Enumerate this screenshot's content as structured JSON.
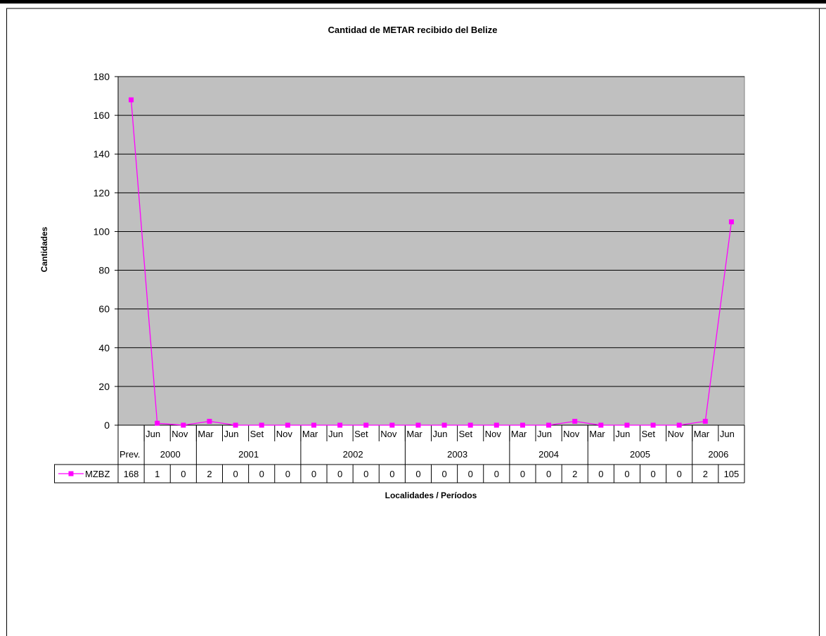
{
  "chart_data": {
    "type": "line",
    "title": "Cantidad de METAR recibido del Belize",
    "xlabel": "Localidades / Períodos",
    "ylabel": "Cantidades",
    "ylim": [
      0,
      180
    ],
    "yticks": [
      0,
      20,
      40,
      60,
      80,
      100,
      120,
      140,
      160,
      180
    ],
    "grid": true,
    "categories": [
      "Prev.",
      "Jun",
      "Nov",
      "Mar",
      "Jun",
      "Set",
      "Nov",
      "Mar",
      "Jun",
      "Set",
      "Nov",
      "Mar",
      "Jun",
      "Set",
      "Nov",
      "Mar",
      "Jun",
      "Nov",
      "Mar",
      "Jun",
      "Set",
      "Nov",
      "Mar",
      "Jun"
    ],
    "groups": [
      {
        "label": "",
        "count": 1
      },
      {
        "label": "2000",
        "count": 2
      },
      {
        "label": "2001",
        "count": 4
      },
      {
        "label": "2002",
        "count": 4
      },
      {
        "label": "2003",
        "count": 4
      },
      {
        "label": "2004",
        "count": 3
      },
      {
        "label": "2005",
        "count": 4
      },
      {
        "label": "2006",
        "count": 2
      }
    ],
    "series": [
      {
        "name": "MZBZ",
        "color": "#ff00ff",
        "values": [
          168,
          1,
          0,
          2,
          0,
          0,
          0,
          0,
          0,
          0,
          0,
          0,
          0,
          0,
          0,
          0,
          0,
          2,
          0,
          0,
          0,
          0,
          2,
          105
        ]
      }
    ],
    "plot_background": "#c0c0c0"
  }
}
